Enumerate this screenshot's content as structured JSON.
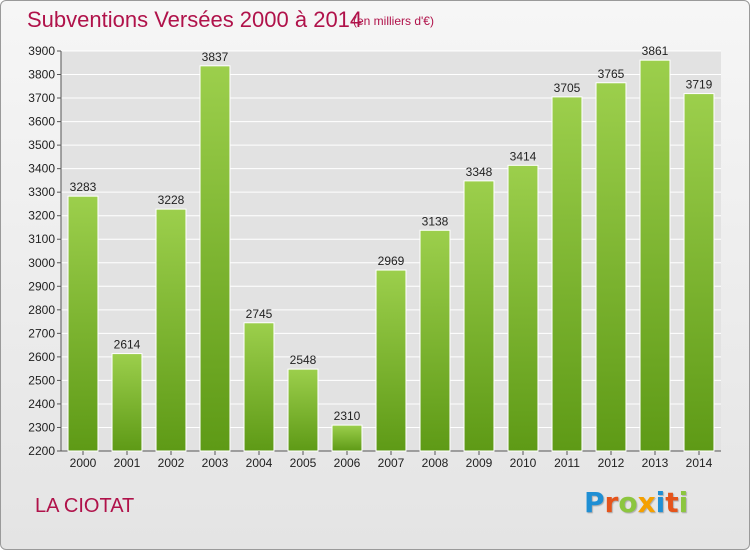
{
  "header": {
    "title": "Subventions Versées 2000 à 2014",
    "subtitle": "(en milliers d'€)"
  },
  "footer": {
    "commune": "LA CIOTAT",
    "logo_text": "Proxiti",
    "logo_letter_colors": [
      "#1f8fd4",
      "#e5541b",
      "#8cc63f",
      "#f5a000",
      "#1f8fd4",
      "#e5541b",
      "#8cc63f"
    ]
  },
  "colors": {
    "bar_top": "#9ccf4c",
    "bar_bottom": "#5e9a16",
    "grid": "#ffffff",
    "accent": "#b0124a"
  },
  "chart_data": {
    "type": "bar",
    "title": "Subventions Versées 2000 à 2014",
    "subtitle": "(en milliers d'€)",
    "categories": [
      "2000",
      "2001",
      "2002",
      "2003",
      "2004",
      "2005",
      "2006",
      "2007",
      "2008",
      "2009",
      "2010",
      "2011",
      "2012",
      "2013",
      "2014"
    ],
    "values": [
      3283,
      2614,
      3228,
      3837,
      2745,
      2548,
      2310,
      2969,
      3138,
      3348,
      3414,
      3705,
      3765,
      3861,
      3719
    ],
    "value_labels": [
      "3283",
      "2614",
      "3228",
      "3837",
      "2745",
      "2548",
      "2310",
      "2969",
      "3138",
      "3348",
      "3414",
      "3705",
      "3765",
      "3861",
      "3719"
    ],
    "ylim": [
      2200,
      3900
    ],
    "yticks": [
      2200,
      2300,
      2400,
      2500,
      2600,
      2700,
      2800,
      2900,
      3000,
      3100,
      3200,
      3300,
      3400,
      3500,
      3600,
      3700,
      3800,
      3900
    ],
    "grid": true,
    "legend": "none"
  }
}
